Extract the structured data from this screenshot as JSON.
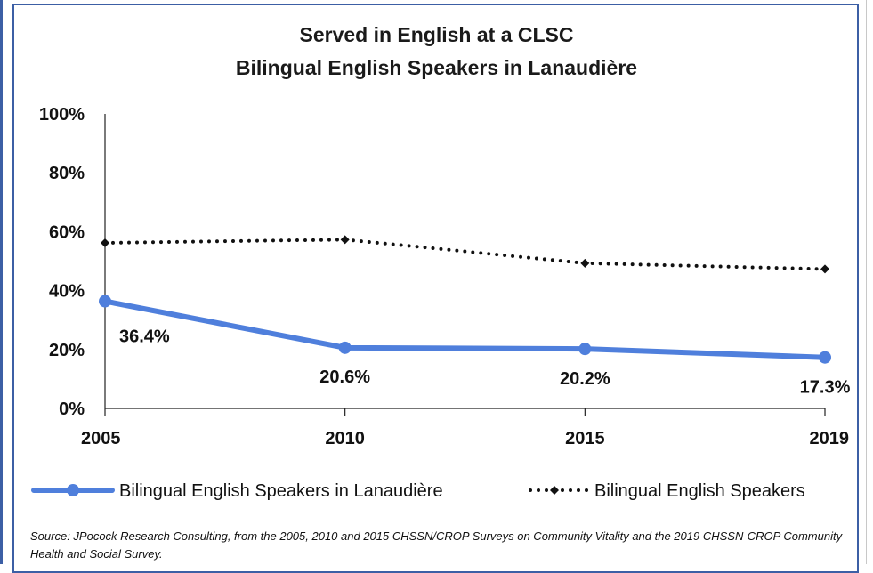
{
  "chart_data": {
    "type": "line",
    "title": "Served in English at a CLSC",
    "subtitle": "Bilingual English Speakers in Lanaudière",
    "categories": [
      "2005",
      "2010",
      "2015",
      "2019"
    ],
    "y_ticks": [
      "0%",
      "20%",
      "40%",
      "60%",
      "80%",
      "100%"
    ],
    "ylim": [
      0,
      100
    ],
    "grid": false,
    "legend_position": "bottom",
    "series": [
      {
        "name": "Bilingual English Speakers in Lanaudière",
        "values": [
          36.4,
          20.6,
          20.2,
          17.3
        ],
        "labels": [
          "36.4%",
          "20.6%",
          "20.2%",
          "17.3%"
        ],
        "color": "#4f7fdc",
        "style": "solid"
      },
      {
        "name": "Bilingual English Speakers",
        "values": [
          56.2,
          57.3,
          49.3,
          47.3
        ],
        "color": "#111111",
        "style": "dotted"
      }
    ]
  },
  "source": "Source: JPocock Research Consulting, from the 2005, 2010  and 2015  CHSSN/CROP Surveys on Community Vitality and the 2019  CHSSN-CROP Community Health and Social Survey."
}
